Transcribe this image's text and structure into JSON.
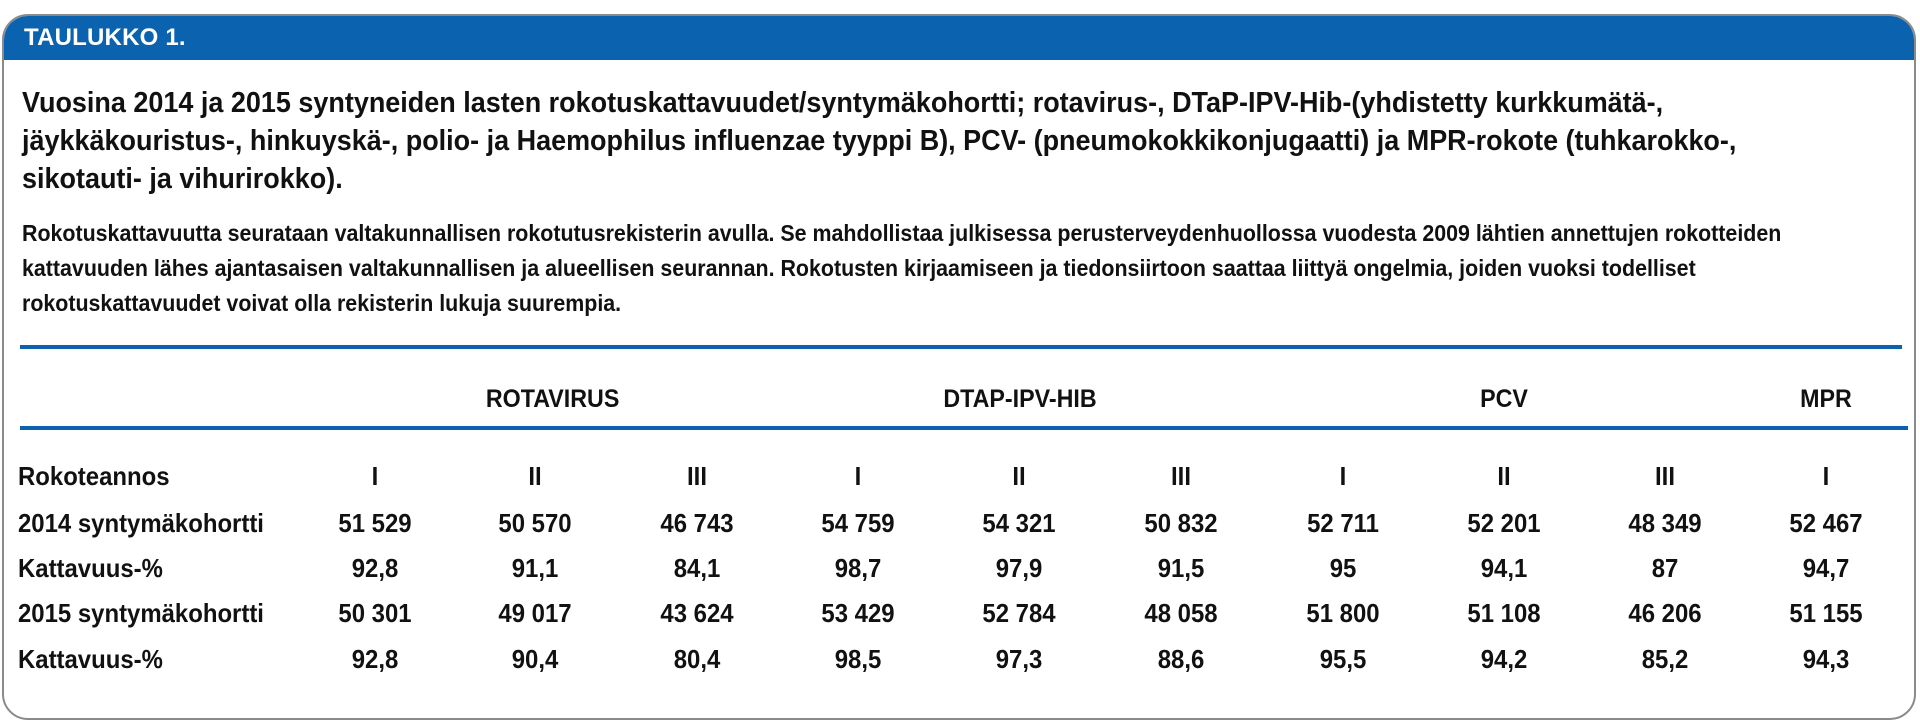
{
  "banner": {
    "label": "TAULUKKO 1."
  },
  "title": "Vuosina 2014 ja 2015 syntyneiden lasten rokotuskattavuudet/syntymäkohortti; rotavirus-, DTaP-IPV-Hib-(yhdistetty kurkkumätä-, jäykkäkouristus-, hinkuyskä-, polio- ja Haemophilus influenzae tyyppi B), PCV- (pneumokokkikonjugaatti) ja MPR-rokote (tuhkarokko-, sikotauti- ja vihurirokko).",
  "description": "Rokotuskattavuutta seurataan valtakunnallisen rokotutusrekisterin avulla. Se mahdollistaa julkisessa perusterveydenhuollossa vuodesta 2009 lähtien annettujen rokotteiden kattavuuden lähes ajantasaisen valtakunnallisen ja alueellisen seurannan. Rokotusten kirjaamiseen ja tiedonsiirtoon saattaa liittyä ongelmia, joiden vuoksi todelliset rokotuskattavuudet voivat olla rekisterin lukuja suurempia.",
  "table": {
    "groups": [
      "ROTAVIRUS",
      "DTAP-IPV-HIB",
      "PCV",
      "MPR"
    ],
    "rows": [
      {
        "label": "Rokoteannos",
        "cells": [
          "I",
          "II",
          "III",
          "I",
          "II",
          "III",
          "I",
          "II",
          "III",
          "I"
        ]
      },
      {
        "label": "2014 syntymäkohortti",
        "cells": [
          "51 529",
          "50 570",
          "46 743",
          "54 759",
          "54 321",
          "50 832",
          "52 711",
          "52 201",
          "48 349",
          "52 467"
        ]
      },
      {
        "label": "Kattavuus-%",
        "cells": [
          "92,8",
          "91,1",
          "84,1",
          "98,7",
          "97,9",
          "91,5",
          "95",
          "94,1",
          "87",
          "94,7"
        ]
      },
      {
        "label": "2015 syntymäkohortti",
        "cells": [
          "50 301",
          "49 017",
          "43 624",
          "53 429",
          "52 784",
          "48 058",
          "51 800",
          "51 108",
          "46 206",
          "51 155"
        ]
      },
      {
        "label": "Kattavuus-%",
        "cells": [
          "92,8",
          "90,4",
          "80,4",
          "98,5",
          "97,3",
          "88,6",
          "95,5",
          "94,2",
          "85,2",
          "94,3"
        ]
      }
    ]
  },
  "colors": {
    "accent": "#0b63b0",
    "border": "#8a8a8a",
    "text": "#111111"
  }
}
